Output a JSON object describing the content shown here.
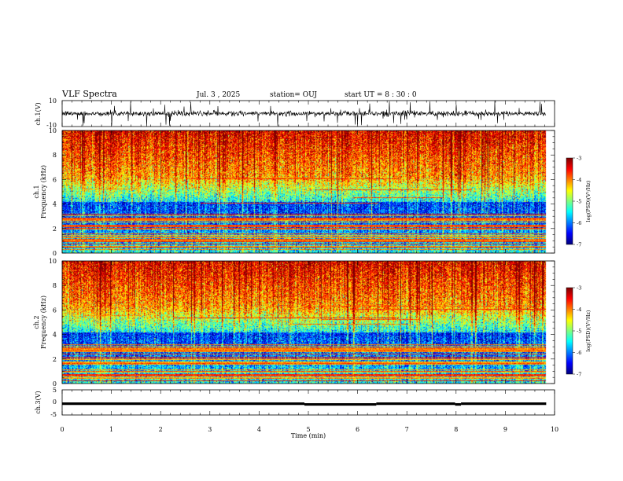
{
  "header": {
    "title": "VLF Spectra",
    "date": "Jul. 3 , 2025",
    "station": "station= OUJ",
    "start": "start UT = 8 : 30 : 0"
  },
  "chart_data": [
    {
      "type": "line",
      "panel": "ch1-waveform",
      "ylabel": "ch.1(V)",
      "ylim": [
        -10,
        10
      ],
      "yticks": [
        10,
        -10
      ],
      "xlim": [
        0,
        10
      ],
      "baseline": 0,
      "noise": "dense impulsive spikes, mostly within -4 to 4 V, occasional spikes to ±10 V",
      "color": "#000000"
    },
    {
      "type": "heatmap",
      "panel": "ch1-spectrogram",
      "ylabel": "ch.1 Frequency (kHz)",
      "ylim": [
        0,
        10
      ],
      "yticks": [
        0,
        2,
        4,
        6,
        8,
        10
      ],
      "xlim": [
        0,
        10
      ],
      "colorbar": {
        "label": "log(PSD)(V²/Hz)",
        "range": [
          -7,
          -3
        ],
        "ticks": [
          -3,
          -4,
          -5,
          -6,
          -7
        ]
      },
      "gap_start_min": 9.83
    },
    {
      "type": "heatmap",
      "panel": "ch2-spectrogram",
      "ylabel": "ch.2 Frequency (kHz)",
      "ylim": [
        0,
        10
      ],
      "yticks": [
        0,
        2,
        4,
        6,
        8,
        10
      ],
      "xlim": [
        0,
        10
      ],
      "colorbar": {
        "label": "log(PSD)(V²/Hz)",
        "range": [
          -7,
          -3
        ],
        "ticks": [
          -3,
          -4,
          -5,
          -6,
          -7
        ]
      },
      "gap_start_min": 9.83
    },
    {
      "type": "line",
      "panel": "ch3-signal",
      "ylabel": "ch.3(V)",
      "ylim": [
        -5,
        5
      ],
      "yticks": [
        5,
        0,
        -5
      ],
      "xlim": [
        0,
        10
      ],
      "xlabel": "Time (min)",
      "xticks": [
        0,
        1,
        2,
        3,
        4,
        5,
        6,
        7,
        8,
        9,
        10
      ],
      "segments": [
        {
          "x": [
            0,
            4.92
          ],
          "y": -0.5
        },
        {
          "x": [
            4.92,
            6.38
          ],
          "y": -0.8
        },
        {
          "x": [
            6.38,
            7.98
          ],
          "y": -0.5
        },
        {
          "x": [
            7.98,
            8.1
          ],
          "y": -0.8
        },
        {
          "x": [
            8.1,
            9.83
          ],
          "y": -0.5
        }
      ]
    }
  ],
  "colors": {
    "colormap": [
      "#00007f",
      "#0000ff",
      "#007fff",
      "#00ffff",
      "#7fff7f",
      "#ffff00",
      "#ff7f00",
      "#ff0000",
      "#7f0000"
    ]
  }
}
